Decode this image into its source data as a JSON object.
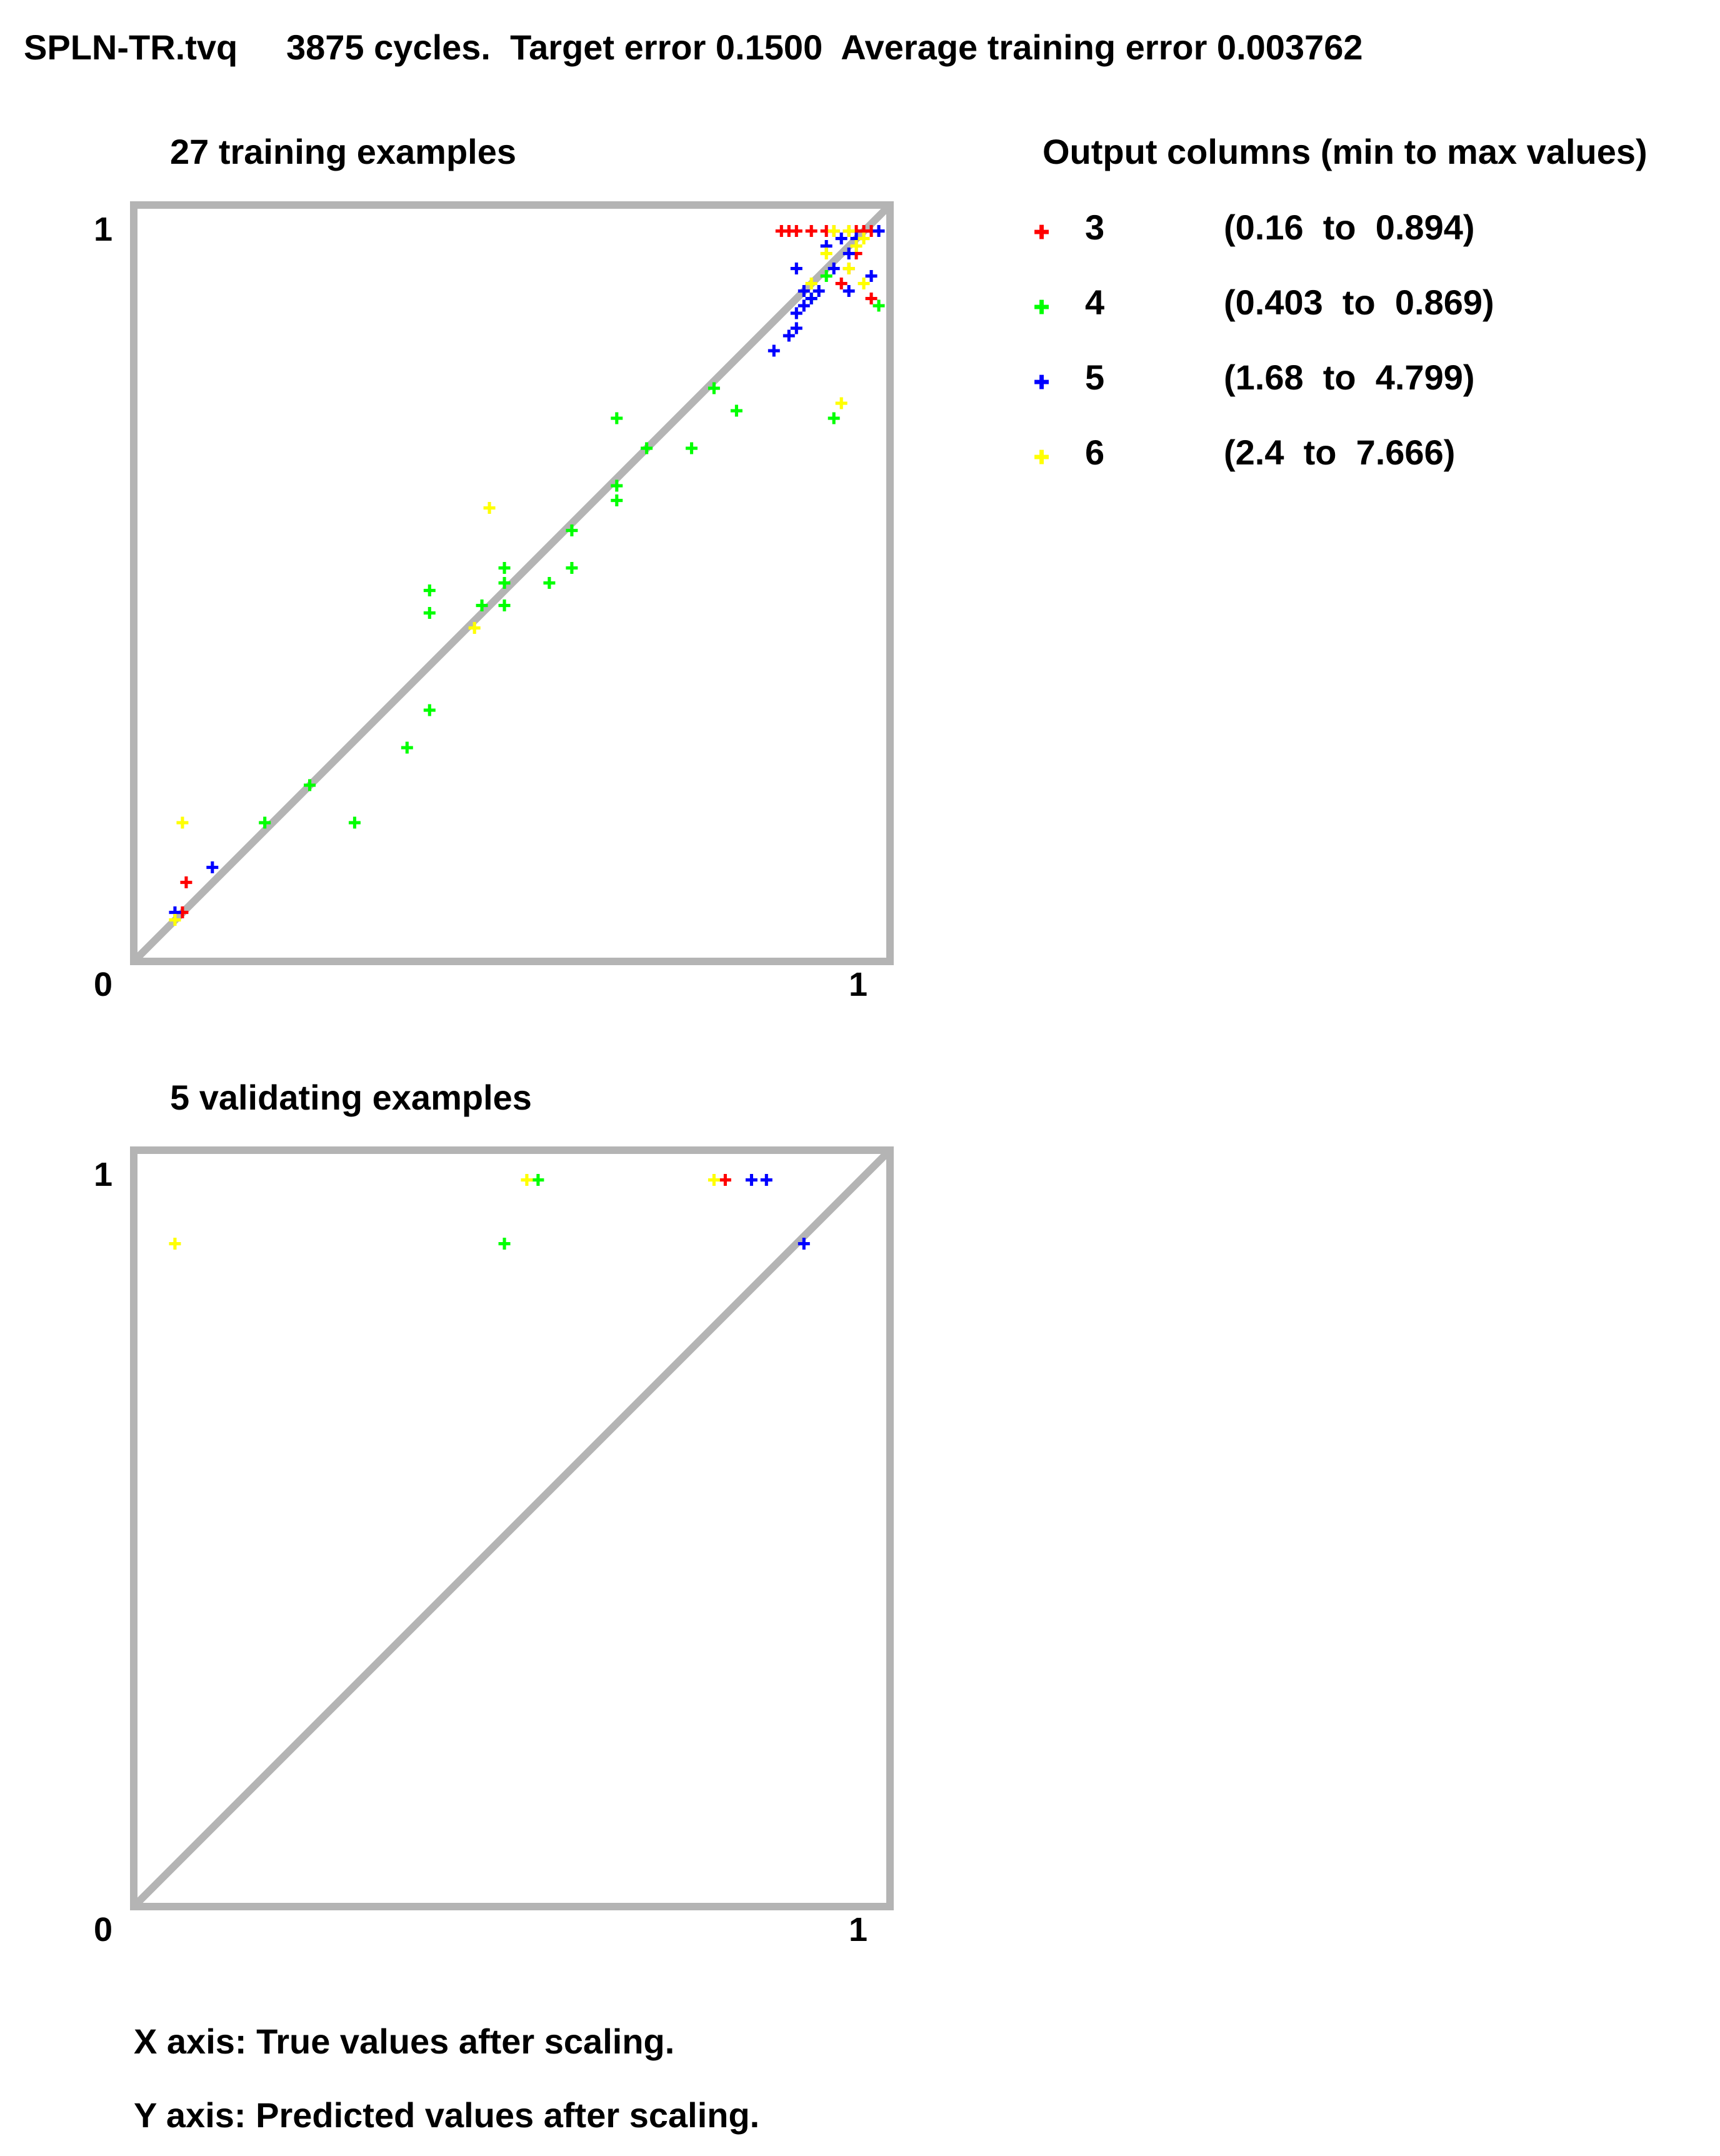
{
  "header": "SPLN-TR.tvq     3875 cycles.  Target error 0.1500  Average training error 0.003762",
  "legend": {
    "title": "Output columns (min to max values)",
    "items": [
      {
        "column": "3",
        "range": "(0.16  to  0.894)",
        "color": "#ff0000"
      },
      {
        "column": "4",
        "range": "(0.403  to  0.869)",
        "color": "#00ff00"
      },
      {
        "column": "5",
        "range": "(1.68  to  4.799)",
        "color": "#0000ff"
      },
      {
        "column": "6",
        "range": "(2.4  to  7.666)",
        "color": "#ffff00"
      }
    ]
  },
  "footnotes": {
    "x_axis": "X axis: True values after scaling.",
    "y_axis": "Y axis: Predicted values after scaling."
  },
  "chart_data": [
    {
      "type": "scatter",
      "title": "27 training examples",
      "xlim": [
        0,
        1
      ],
      "ylim": [
        0,
        1
      ],
      "x_tick_min": "0",
      "x_tick_max": "1",
      "y_tick_max": "1",
      "reference_line": "y = x",
      "series": [
        {
          "name": "3",
          "color": "#ff0000",
          "points": [
            [
              0.06,
              0.06
            ],
            [
              0.065,
              0.1
            ],
            [
              0.86,
              0.97
            ],
            [
              0.87,
              0.97
            ],
            [
              0.88,
              0.97
            ],
            [
              0.9,
              0.97
            ],
            [
              0.92,
              0.97
            ],
            [
              0.93,
              0.97
            ],
            [
              0.95,
              0.97
            ],
            [
              0.96,
              0.97
            ],
            [
              0.97,
              0.97
            ],
            [
              0.98,
              0.97
            ],
            [
              0.95,
              0.92
            ],
            [
              0.96,
              0.94
            ],
            [
              0.98,
              0.88
            ],
            [
              0.94,
              0.9
            ]
          ]
        },
        {
          "name": "4",
          "color": "#00ff00",
          "points": [
            [
              0.17,
              0.18
            ],
            [
              0.23,
              0.23
            ],
            [
              0.29,
              0.18
            ],
            [
              0.36,
              0.28
            ],
            [
              0.39,
              0.33
            ],
            [
              0.39,
              0.46
            ],
            [
              0.39,
              0.49
            ],
            [
              0.46,
              0.47
            ],
            [
              0.49,
              0.47
            ],
            [
              0.49,
              0.5
            ],
            [
              0.49,
              0.52
            ],
            [
              0.55,
              0.5
            ],
            [
              0.58,
              0.52
            ],
            [
              0.58,
              0.57
            ],
            [
              0.64,
              0.61
            ],
            [
              0.64,
              0.63
            ],
            [
              0.64,
              0.72
            ],
            [
              0.68,
              0.68
            ],
            [
              0.74,
              0.68
            ],
            [
              0.77,
              0.76
            ],
            [
              0.8,
              0.73
            ],
            [
              0.9,
              0.88
            ],
            [
              0.92,
              0.91
            ],
            [
              0.93,
              0.72
            ],
            [
              0.99,
              0.87
            ]
          ]
        },
        {
          "name": "5",
          "color": "#0000ff",
          "points": [
            [
              0.05,
              0.06
            ],
            [
              0.1,
              0.12
            ],
            [
              0.85,
              0.81
            ],
            [
              0.87,
              0.83
            ],
            [
              0.88,
              0.84
            ],
            [
              0.88,
              0.86
            ],
            [
              0.89,
              0.87
            ],
            [
              0.89,
              0.89
            ],
            [
              0.9,
              0.88
            ],
            [
              0.91,
              0.89
            ],
            [
              0.92,
              0.95
            ],
            [
              0.93,
              0.92
            ],
            [
              0.94,
              0.96
            ],
            [
              0.95,
              0.89
            ],
            [
              0.95,
              0.94
            ],
            [
              0.96,
              0.96
            ],
            [
              0.98,
              0.91
            ],
            [
              0.99,
              0.97
            ],
            [
              0.88,
              0.92
            ]
          ]
        },
        {
          "name": "6",
          "color": "#ffff00",
          "points": [
            [
              0.05,
              0.05
            ],
            [
              0.06,
              0.18
            ],
            [
              0.45,
              0.44
            ],
            [
              0.47,
              0.6
            ],
            [
              0.9,
              0.9
            ],
            [
              0.92,
              0.94
            ],
            [
              0.94,
              0.74
            ],
            [
              0.95,
              0.92
            ],
            [
              0.96,
              0.95
            ],
            [
              0.97,
              0.9
            ],
            [
              0.97,
              0.96
            ],
            [
              0.93,
              0.97
            ],
            [
              0.95,
              0.97
            ]
          ]
        }
      ]
    },
    {
      "type": "scatter",
      "title": "5 validating examples",
      "xlim": [
        0,
        1
      ],
      "ylim": [
        0,
        1
      ],
      "x_tick_min": "0",
      "x_tick_max": "1",
      "y_tick_max": "1",
      "reference_line": "y = x",
      "series": [
        {
          "name": "3",
          "color": "#ff0000",
          "points": [
            [
              0.785,
              0.965
            ]
          ]
        },
        {
          "name": "4",
          "color": "#00ff00",
          "points": [
            [
              0.49,
              0.88
            ],
            [
              0.535,
              0.965
            ]
          ]
        },
        {
          "name": "5",
          "color": "#0000ff",
          "points": [
            [
              0.82,
              0.965
            ],
            [
              0.84,
              0.965
            ],
            [
              0.89,
              0.88
            ]
          ]
        },
        {
          "name": "6",
          "color": "#ffff00",
          "points": [
            [
              0.05,
              0.88
            ],
            [
              0.52,
              0.965
            ],
            [
              0.77,
              0.965
            ]
          ]
        }
      ]
    }
  ]
}
